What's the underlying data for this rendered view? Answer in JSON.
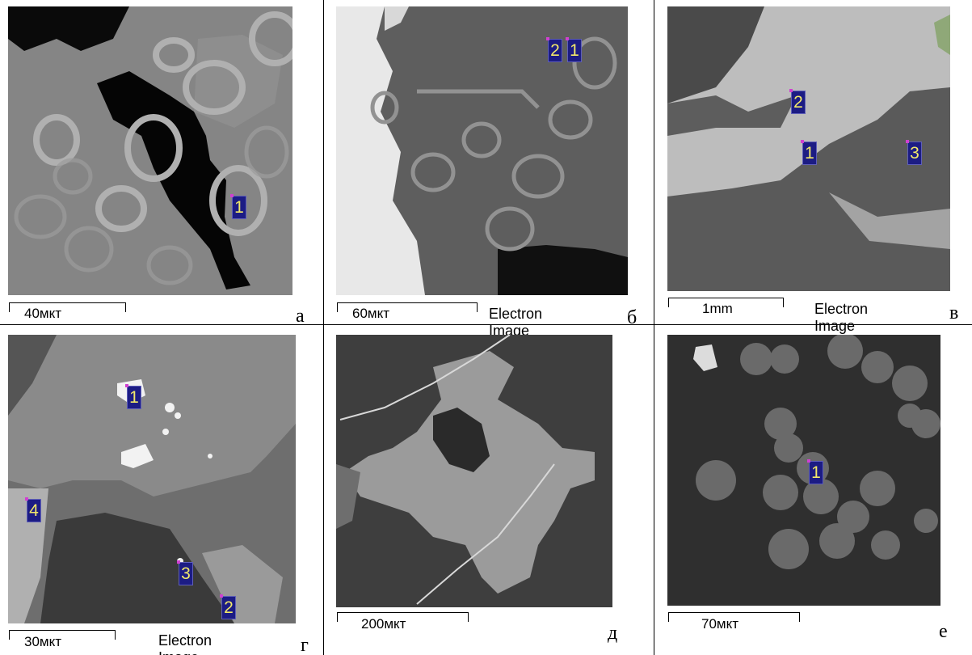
{
  "panels": [
    {
      "id": "a",
      "letter": "а",
      "scale": "40мкт",
      "caption": "",
      "markers": [
        "1"
      ]
    },
    {
      "id": "b",
      "letter": "б",
      "scale": "60мкт",
      "caption": "Electron Image",
      "markers": [
        "2",
        "1"
      ]
    },
    {
      "id": "v",
      "letter": "в",
      "scale": "1mm",
      "caption": "Electron Image",
      "markers": [
        "2",
        "1",
        "3"
      ]
    },
    {
      "id": "g",
      "letter": "г",
      "scale": "30мкт",
      "caption": "Electron Image",
      "markers": [
        "1",
        "4",
        "3",
        "2"
      ]
    },
    {
      "id": "d",
      "letter": "д",
      "scale": "200мкт",
      "caption": "",
      "markers": []
    },
    {
      "id": "e",
      "letter": "е",
      "scale": "70мкт",
      "caption": "",
      "markers": [
        "1"
      ]
    }
  ],
  "colors": {
    "marker_bg": "#1c1c84",
    "marker_text": "#f2e96a"
  }
}
